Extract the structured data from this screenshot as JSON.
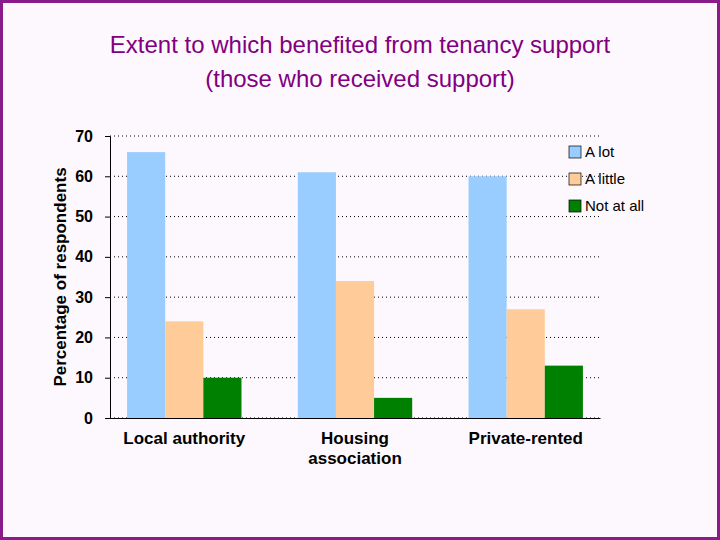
{
  "chart_data": {
    "type": "bar",
    "title": "Extent to which benefited from tenancy support",
    "subtitle": "(those who received support)",
    "y_label": "Percentage of respondents",
    "categories": [
      "Local authority",
      "Housing association",
      "Private-rented"
    ],
    "series": [
      {
        "name": "A lot",
        "color": "#99ccff",
        "values": [
          66,
          61,
          60
        ]
      },
      {
        "name": "A little",
        "color": "#ffcc99",
        "values": [
          24,
          34,
          27
        ]
      },
      {
        "name": "Not at all",
        "color": "#008000",
        "values": [
          10,
          5,
          13
        ]
      }
    ],
    "ylim": [
      0,
      70
    ],
    "yticks": [
      0,
      10,
      20,
      30,
      40,
      50,
      60,
      70
    ],
    "grid": true,
    "legend": "top-right"
  }
}
